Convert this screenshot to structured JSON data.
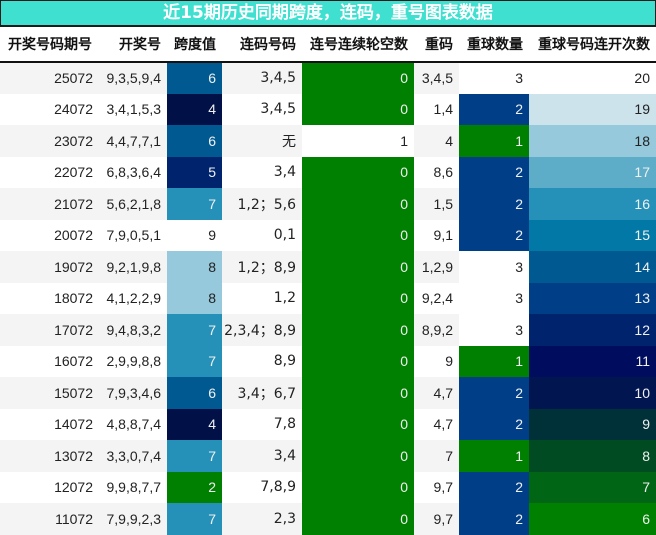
{
  "title": "近15期历史同期跨度，连码，重号图表数据",
  "columns": [
    "开奖号码期号",
    "开奖号",
    "跨度值",
    "连码号码",
    "连号连续轮空数",
    "重码",
    "重球数量",
    "重球号码连开次数"
  ],
  "colors": {
    "title_bg": "#40E0D0",
    "row_stripe": "#F4F4F4",
    "green": "#008000",
    "white": "#FFFFFF",
    "span_scale": {
      "2": "#008000",
      "4": "#011148",
      "5": "#00236E",
      "6": "#005A91",
      "7": "#2591B8",
      "8": "#96C9DB",
      "9": "#FFFFFF"
    },
    "gap_scale": {
      "0": "#008000",
      "1": "#FFFFFF"
    },
    "repeat_count_scale": {
      "1": "#008000",
      "2": "#003F87",
      "3": "#FFFFFF"
    },
    "streak_scale": {
      "6": "#008000",
      "7": "#006514",
      "8": "#004B22",
      "9": "#003038",
      "10": "#011550",
      "11": "#000D5E",
      "12": "#00236E",
      "13": "#003F87",
      "14": "#005A91",
      "15": "#0278A6",
      "16": "#2591B8",
      "17": "#5DADC9",
      "18": "#96C9DB",
      "19": "#CCE3EC",
      "20": "#FFFFFF"
    }
  },
  "rows": [
    {
      "period": "25072",
      "numbers": "9,3,5,9,4",
      "span": "6",
      "consecutive": "3,4,5",
      "gap": "0",
      "repeat": "3,4,5",
      "repeat_count": "3",
      "streak": "20"
    },
    {
      "period": "24072",
      "numbers": "3,4,1,5,3",
      "span": "4",
      "consecutive": "3,4,5",
      "gap": "0",
      "repeat": "1,4",
      "repeat_count": "2",
      "streak": "19"
    },
    {
      "period": "23072",
      "numbers": "4,4,7,7,1",
      "span": "6",
      "consecutive": "无",
      "gap": "1",
      "repeat": "4",
      "repeat_count": "1",
      "streak": "18"
    },
    {
      "period": "22072",
      "numbers": "6,8,3,6,4",
      "span": "5",
      "consecutive": "3,4",
      "gap": "0",
      "repeat": "8,6",
      "repeat_count": "2",
      "streak": "17"
    },
    {
      "period": "21072",
      "numbers": "5,6,2,1,8",
      "span": "7",
      "consecutive": "1,2；5,6",
      "gap": "0",
      "repeat": "1,5",
      "repeat_count": "2",
      "streak": "16"
    },
    {
      "period": "20072",
      "numbers": "7,9,0,5,1",
      "span": "9",
      "consecutive": "0,1",
      "gap": "0",
      "repeat": "9,1",
      "repeat_count": "2",
      "streak": "15"
    },
    {
      "period": "19072",
      "numbers": "9,2,1,9,8",
      "span": "8",
      "consecutive": "1,2；8,9",
      "gap": "0",
      "repeat": "1,2,9",
      "repeat_count": "3",
      "streak": "14"
    },
    {
      "period": "18072",
      "numbers": "4,1,2,2,9",
      "span": "8",
      "consecutive": "1,2",
      "gap": "0",
      "repeat": "9,2,4",
      "repeat_count": "3",
      "streak": "13"
    },
    {
      "period": "17072",
      "numbers": "9,4,8,3,2",
      "span": "7",
      "consecutive": "2,3,4；8,9",
      "gap": "0",
      "repeat": "8,9,2",
      "repeat_count": "3",
      "streak": "12"
    },
    {
      "period": "16072",
      "numbers": "2,9,9,8,8",
      "span": "7",
      "consecutive": "8,9",
      "gap": "0",
      "repeat": "9",
      "repeat_count": "1",
      "streak": "11"
    },
    {
      "period": "15072",
      "numbers": "7,9,3,4,6",
      "span": "6",
      "consecutive": "3,4；6,7",
      "gap": "0",
      "repeat": "4,7",
      "repeat_count": "2",
      "streak": "10"
    },
    {
      "period": "14072",
      "numbers": "4,8,8,7,4",
      "span": "4",
      "consecutive": "7,8",
      "gap": "0",
      "repeat": "4,7",
      "repeat_count": "2",
      "streak": "9"
    },
    {
      "period": "13072",
      "numbers": "3,3,0,7,4",
      "span": "7",
      "consecutive": "3,4",
      "gap": "0",
      "repeat": "7",
      "repeat_count": "1",
      "streak": "8"
    },
    {
      "period": "12072",
      "numbers": "9,9,8,7,7",
      "span": "2",
      "consecutive": "7,8,9",
      "gap": "0",
      "repeat": "9,7",
      "repeat_count": "2",
      "streak": "7"
    },
    {
      "period": "11072",
      "numbers": "7,9,9,2,3",
      "span": "7",
      "consecutive": "2,3",
      "gap": "0",
      "repeat": "9,7",
      "repeat_count": "2",
      "streak": "6"
    }
  ]
}
